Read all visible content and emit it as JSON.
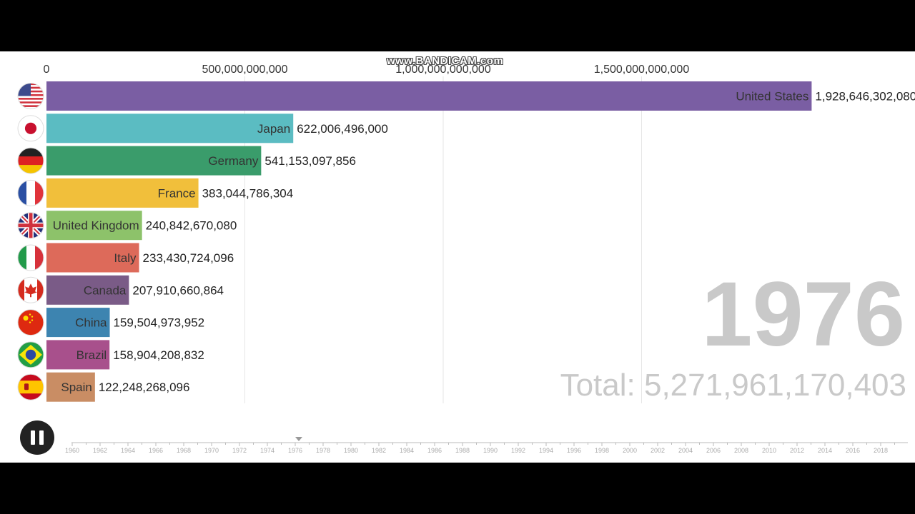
{
  "watermark": "www.BANDICAM.com",
  "chart_data": {
    "type": "bar",
    "orientation": "horizontal",
    "axis_ticks": [
      "0",
      "500,000,000,000",
      "1,000,000,000,000",
      "1,500,000,000,000"
    ],
    "axis_tick_values": [
      0,
      500000000000,
      1000000000000,
      1500000000000
    ],
    "categories": [
      "United States",
      "Japan",
      "Germany",
      "France",
      "United Kingdom",
      "Italy",
      "Canada",
      "China",
      "Brazil",
      "Spain"
    ],
    "values": [
      1928646302080,
      622006496000,
      541153097856,
      383044786304,
      240842670080,
      233430724096,
      207910660864,
      159504973952,
      158904208832,
      122248268096
    ],
    "value_labels": [
      "1,928,646,302,080",
      "622,006,496,000",
      "541,153,097,856",
      "383,044,786,304",
      "240,842,670,080",
      "233,430,724,096",
      "207,910,660,864",
      "159,504,973,952",
      "158,904,208,832",
      "122,248,268,096"
    ],
    "colors": [
      "#7a5ea3",
      "#5bbcc2",
      "#3a9c6b",
      "#f1bf3b",
      "#8dc26a",
      "#dd6a5a",
      "#7a5b87",
      "#3d84b0",
      "#a8508c",
      "#c98d64"
    ],
    "flag_icons": [
      "us-flag-icon",
      "japan-flag-icon",
      "germany-flag-icon",
      "france-flag-icon",
      "uk-flag-icon",
      "italy-flag-icon",
      "canada-flag-icon",
      "china-flag-icon",
      "brazil-flag-icon",
      "spain-flag-icon"
    ],
    "year": "1976",
    "total": "Total: 5,271,961,170,403",
    "grid": true
  },
  "timeline": {
    "years": [
      "1960",
      "1962",
      "1964",
      "1966",
      "1968",
      "1970",
      "1972",
      "1974",
      "1976",
      "1978",
      "1980",
      "1982",
      "1984",
      "1986",
      "1988",
      "1990",
      "1992",
      "1994",
      "1996",
      "1998",
      "2000",
      "2002",
      "2004",
      "2006",
      "2008",
      "2010",
      "2012",
      "2014",
      "2016",
      "2018"
    ],
    "current": "1976"
  },
  "controls": {
    "pause_icon": "pause-icon"
  }
}
